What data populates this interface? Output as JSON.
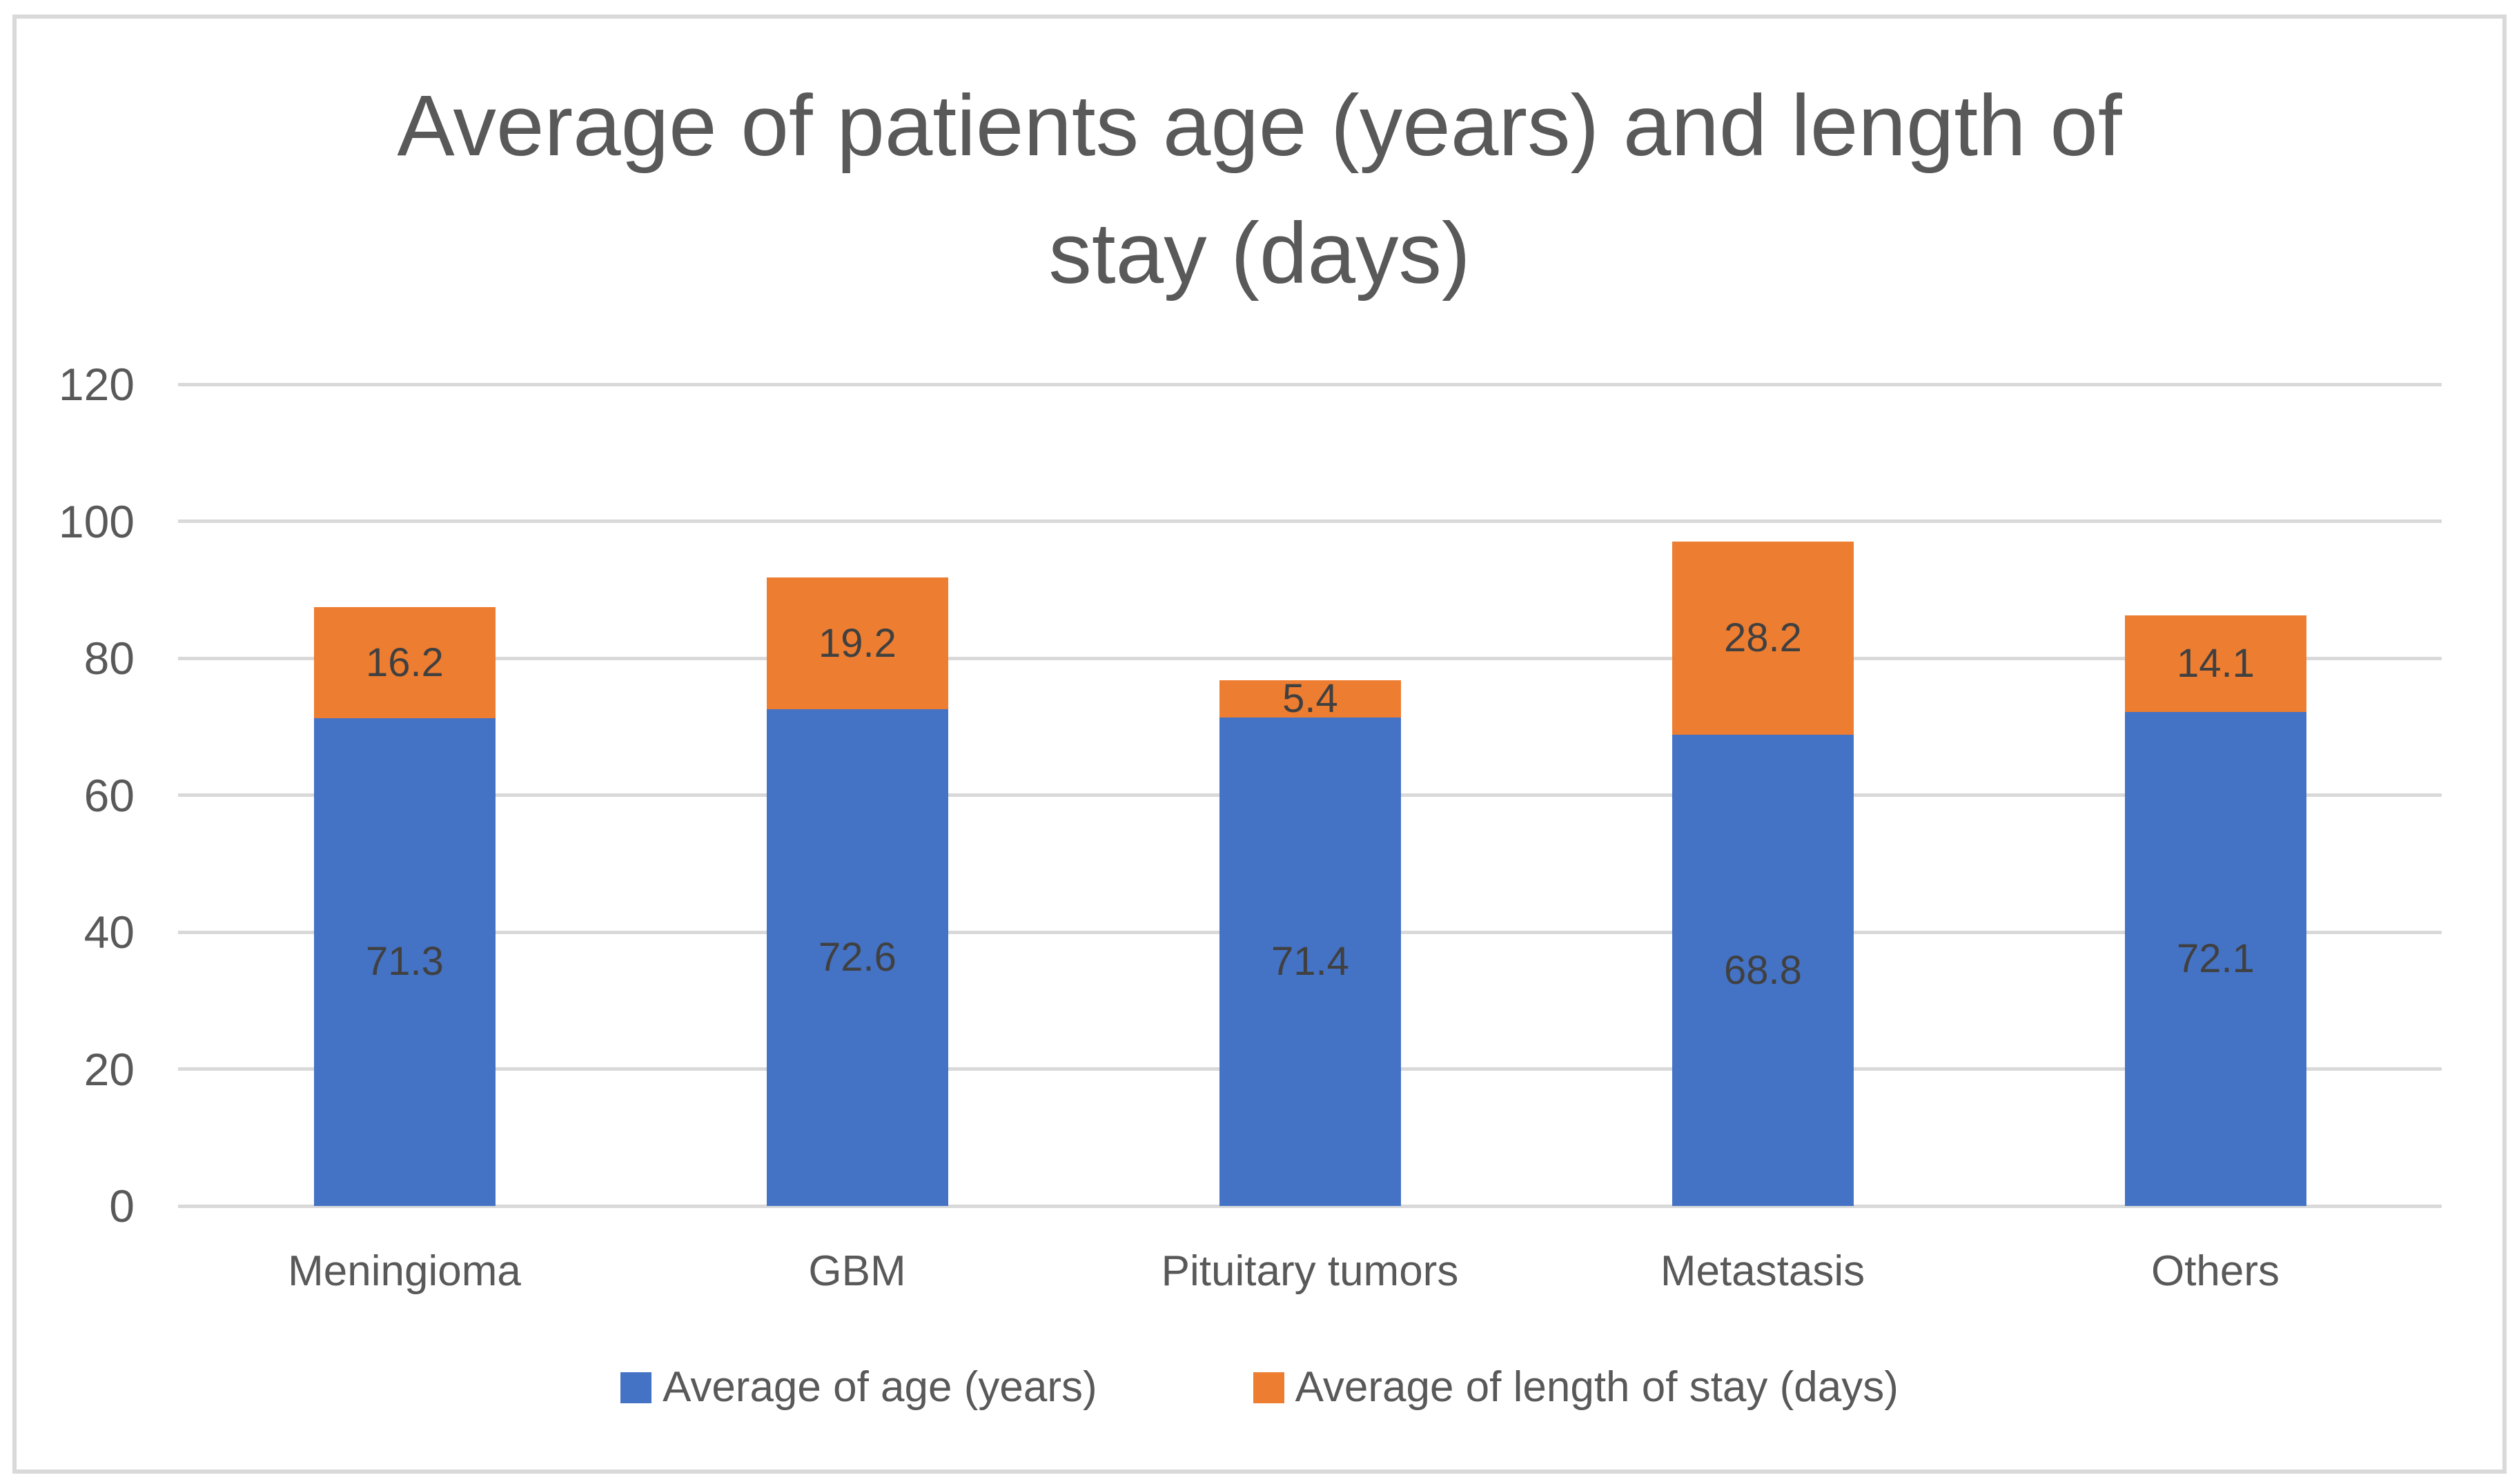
{
  "chart": {
    "title_line1": "Average of patients age (years) and length of",
    "title_line2": "stay (days)"
  },
  "chart_data": {
    "type": "bar",
    "stacked": true,
    "title": "Average of patients age (years) and length of stay (days)",
    "categories": [
      "Meningioma",
      "GBM",
      "Pituitary tumors",
      "Metastasis",
      "Others"
    ],
    "series": [
      {
        "name": "Average of age (years)",
        "color": "#4472C4",
        "values": [
          71.3,
          72.6,
          71.4,
          68.8,
          72.1
        ]
      },
      {
        "name": "Average of length of stay (days)",
        "color": "#ED7D31",
        "values": [
          16.2,
          19.2,
          5.4,
          28.2,
          14.1
        ]
      }
    ],
    "xlabel": "",
    "ylabel": "",
    "ylim": [
      0,
      120
    ],
    "yticks": [
      0,
      20,
      40,
      60,
      80,
      100,
      120
    ],
    "grid": true,
    "legend_position": "bottom",
    "title_color": "#595959",
    "axis_color": "#595959",
    "data_label_color": "#404040",
    "gridline_color": "#D9D9D9",
    "frame_color": "#D9D9D9"
  }
}
